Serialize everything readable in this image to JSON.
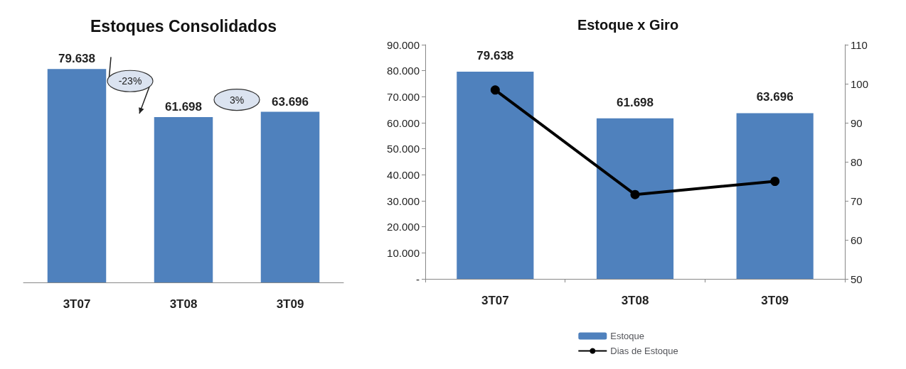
{
  "chart_data": [
    {
      "type": "bar",
      "title": "Estoques Consolidados",
      "categories": [
        "3T07",
        "3T08",
        "3T09"
      ],
      "values": [
        79638,
        61698,
        63696
      ],
      "value_labels": [
        "79.638",
        "61.698",
        "63.696"
      ],
      "color": "#4f81bd",
      "annotations": [
        "-23%",
        "3%"
      ],
      "grid": false,
      "legend": false,
      "tick_labels": "x"
    },
    {
      "type": "bar",
      "title": "Estoque x Giro",
      "categories": [
        "3T07",
        "3T08",
        "3T09"
      ],
      "series": [
        {
          "name": "Estoque",
          "type": "bar",
          "color": "#4f81bd",
          "values": [
            79638,
            61698,
            63696
          ],
          "value_labels": [
            "79.638",
            "61.698",
            "63.696"
          ]
        },
        {
          "name": "Dias de Estoque",
          "type": "line",
          "axis": "y2",
          "color": "#000000",
          "values": [
            98.4,
            71.6,
            75
          ]
        }
      ],
      "ylim": [
        0,
        90000
      ],
      "yticks": [
        {
          "value": 0,
          "label": "-"
        },
        {
          "value": 10000,
          "label": "10.000"
        },
        {
          "value": 20000,
          "label": "20.000"
        },
        {
          "value": 30000,
          "label": "30.000"
        },
        {
          "value": 40000,
          "label": "40.000"
        },
        {
          "value": 50000,
          "label": "50.000"
        },
        {
          "value": 60000,
          "label": "60.000"
        },
        {
          "value": 70000,
          "label": "70.000"
        },
        {
          "value": 80000,
          "label": "80.000"
        },
        {
          "value": 90000,
          "label": "90.000"
        }
      ],
      "y2lim": [
        50,
        110
      ],
      "y2ticks": [
        50,
        60,
        70,
        80,
        90,
        100,
        110
      ],
      "grid": false,
      "legend": "bottom",
      "marker": "circle",
      "line_style": "solid"
    }
  ]
}
